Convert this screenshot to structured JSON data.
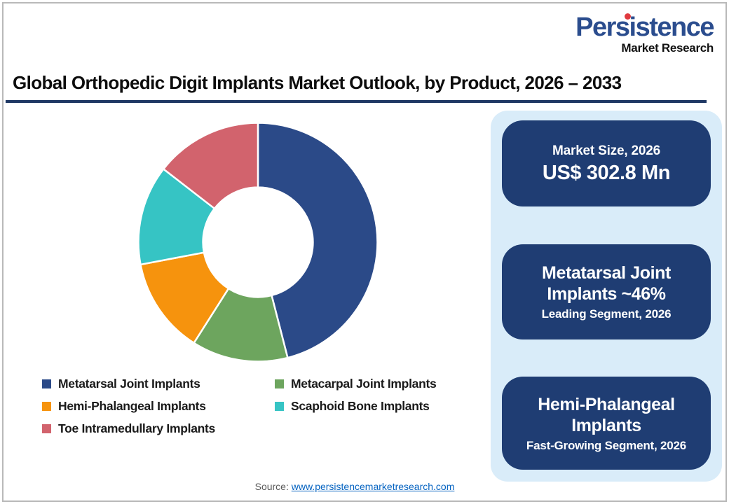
{
  "logo": {
    "brand": "Persistence",
    "tagline": "Market Research",
    "brand_color": "#2b4d8e",
    "dot_color": "#e03a3f"
  },
  "header": {
    "title": "Global Orthopedic Digit Implants Market Outlook, by Product, 2026 – 2033",
    "underline_color": "#1f3864"
  },
  "chart_data": {
    "type": "donut",
    "title": "Global Orthopedic Digit Implants Market Outlook, by Product, 2026 – 2033",
    "categories": [
      "Metatarsal Joint Implants",
      "Metacarpal Joint Implants",
      "Hemi-Phalangeal Implants",
      "Scaphoid Bone Implants",
      "Toe Intramedullary Implants"
    ],
    "values": [
      46,
      13,
      13,
      13.5,
      14.5
    ],
    "unit": "% market share, 2026",
    "colors": [
      "#2b4a88",
      "#6da55e",
      "#f6930d",
      "#36c4c4",
      "#d2636d"
    ],
    "start_angle_deg": 0,
    "clockwise": true,
    "inner_radius_ratio": 0.46,
    "segment_gap_color": "#ffffff",
    "legend_position": "bottom-left",
    "annotations": [
      "Market Size, 2026: US$ 302.8 Mn",
      "Metatarsal Joint Implants ~46% — Leading Segment, 2026",
      "Hemi-Phalangeal Implants — Fast-Growing Segment, 2026"
    ]
  },
  "callouts": {
    "panel_bg": "#1f3d73",
    "column_bg": "#d9ecf9",
    "market_size": {
      "title": "Market Size, 2026",
      "value": "US$ 302.8 Mn"
    },
    "leading": {
      "title": "Metatarsal Joint Implants ~46%",
      "caption": "Leading Segment, 2026"
    },
    "fast_growing": {
      "title": "Hemi-Phalangeal Implants",
      "caption": "Fast-Growing Segment, 2026"
    }
  },
  "footer": {
    "source_label": "Source:",
    "source_link": "www.persistencemarketresearch.com"
  }
}
